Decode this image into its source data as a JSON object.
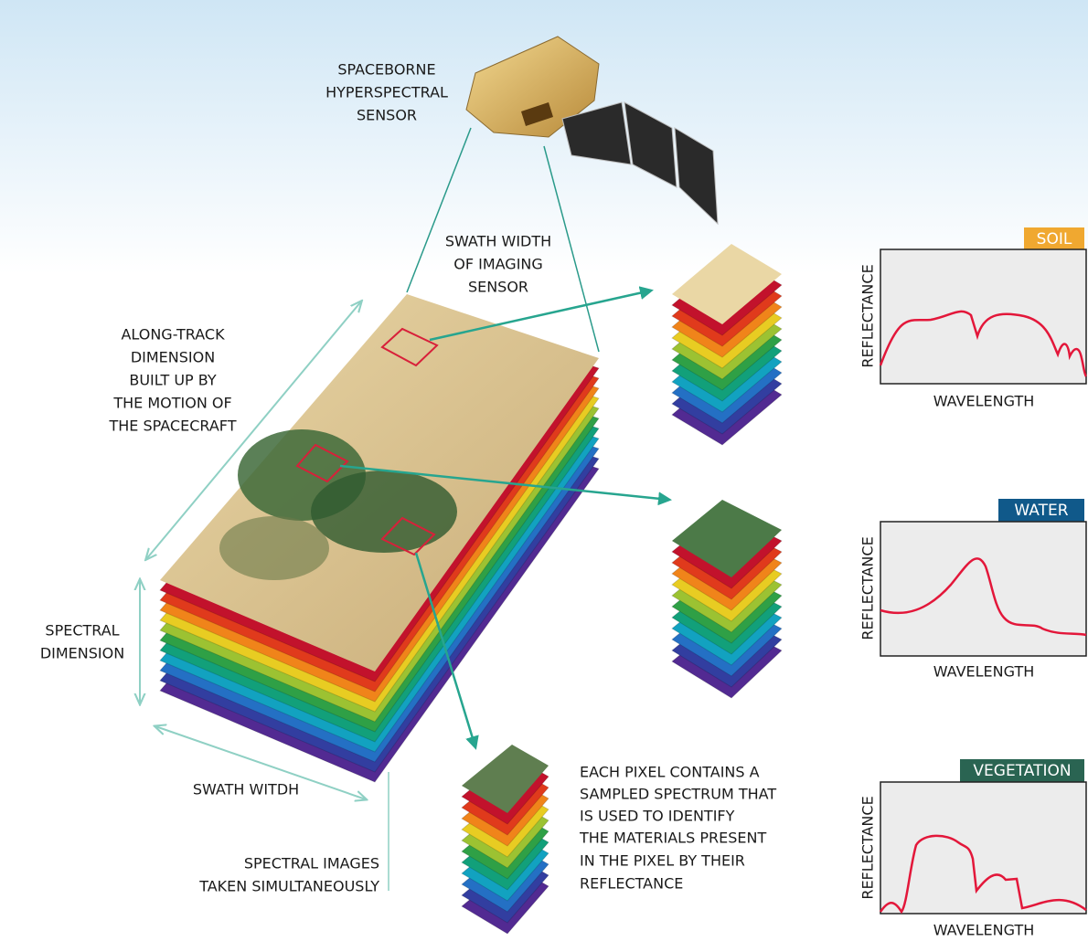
{
  "annotations": {
    "sensor": [
      "SPACEBORNE",
      "HYPERSPECTRAL",
      "SENSOR"
    ],
    "swath_width": [
      "SWATH WIDTH",
      "OF IMAGING",
      "SENSOR"
    ],
    "along_track": [
      "ALONG-TRACK",
      "DIMENSION",
      "BUILT UP BY",
      "THE MOTION OF",
      "THE SPACECRAFT"
    ],
    "spectral_dimension": [
      "SPECTRAL",
      "DIMENSION"
    ],
    "swath": [
      "SWATH WITDH"
    ],
    "spectral_images": [
      "SPECTRAL IMAGES",
      "TAKEN SIMULTANEOUSLY"
    ],
    "pixel_note": [
      "EACH PIXEL CONTAINS A",
      "SAMPLED SPECTRUM THAT",
      "IS USED TO IDENTIFY",
      "THE MATERIALS PRESENT",
      "IN THE PIXEL BY THEIR",
      "REFLECTANCE"
    ]
  },
  "spectra": [
    {
      "label": "SOIL",
      "y_axis": "REFLECTANCE",
      "x_axis": "WAVELENGTH"
    },
    {
      "label": "WATER",
      "y_axis": "REFLECTANCE",
      "x_axis": "WAVELENGTH"
    },
    {
      "label": "VEGETATION",
      "y_axis": "REFLECTANCE",
      "x_axis": "WAVELENGTH"
    }
  ]
}
